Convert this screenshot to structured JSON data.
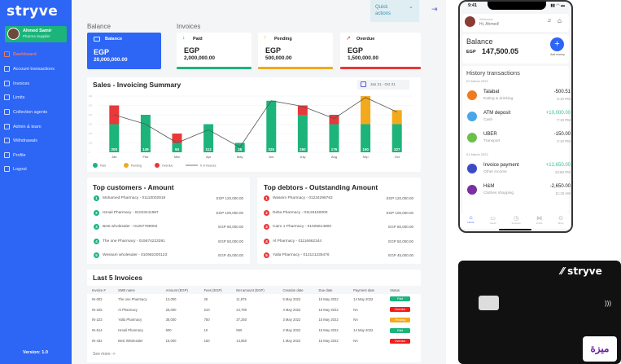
{
  "sidebar": {
    "brand": "stryve",
    "user": {
      "name": "Ahmed Samir",
      "role": "Pharma Supplier"
    },
    "items": [
      {
        "label": "Dashboard"
      },
      {
        "label": "Account transactions"
      },
      {
        "label": "Invoices"
      },
      {
        "label": "Limits"
      },
      {
        "label": "Collection agents"
      },
      {
        "label": "Admin & team"
      },
      {
        "label": "Withdrawals"
      },
      {
        "label": "Profile"
      },
      {
        "label": "Logout"
      }
    ],
    "version": "Version: 1.0"
  },
  "header": {
    "quick_actions": "Quick actions"
  },
  "balance": {
    "section": "Balance",
    "label": "Balance",
    "currency": "EGP",
    "amount": "20,000,000.00"
  },
  "invoices": {
    "section": "Invoices",
    "cards": [
      {
        "label": "Paid",
        "currency": "EGP",
        "amount": "2,000,000.00",
        "color": "#1db47c"
      },
      {
        "label": "Pending",
        "currency": "EGP",
        "amount": "500,000.00",
        "color": "#f2a91c"
      },
      {
        "label": "Overdue",
        "currency": "EGP",
        "amount": "1,500,000.00",
        "color": "#e8383a"
      }
    ]
  },
  "chart_data": {
    "type": "bar",
    "title": "Sales - Invoicing Summary",
    "date_range": "Jan 21 - Oct 21",
    "categories": [
      "Jan",
      "Feb",
      "Mar",
      "Apr",
      "May",
      "Jun",
      "July",
      "Aug",
      "Sep",
      "Oct"
    ],
    "ylim": [
      0,
      600
    ],
    "series": [
      {
        "name": "Paid",
        "color": "#1db47c",
        "values": [
          300,
          400,
          100,
          300,
          100,
          550,
          400,
          300,
          300,
          300
        ]
      },
      {
        "name": "Pending",
        "color": "#f2a91c",
        "values": [
          0,
          0,
          0,
          0,
          0,
          0,
          0,
          0,
          300,
          150
        ]
      },
      {
        "name": "Overdue",
        "color": "#e8383a",
        "values": [
          200,
          0,
          100,
          0,
          0,
          0,
          100,
          100,
          0,
          0
        ]
      },
      {
        "name": "# of invoices",
        "type": "line",
        "color": "#555555",
        "values": [
          400,
          300,
          100,
          240,
          55,
          550,
          490,
          360,
          585,
          430
        ]
      }
    ],
    "bar_labels": [
      "200",
      "149",
      "50",
      "112",
      "25",
      "325",
      "250",
      "175",
      "150",
      "327"
    ]
  },
  "top_customers": {
    "title": "Top customers  - Amount",
    "items": [
      {
        "rank": "1",
        "name": "Mohamed Pharmacy - 01110002918",
        "amount": "EGP 120,000.00"
      },
      {
        "rank": "2",
        "name": "Ismail Pharmacy - 01023411987",
        "amount": "EGP 100,000.00"
      },
      {
        "rank": "3",
        "name": "Best wholesaler - 01257789002",
        "amount": "EGP 80,000.00"
      },
      {
        "rank": "4",
        "name": "The one Pharmacy - 015674223391",
        "amount": "EGP 50,000.00"
      },
      {
        "rank": "5",
        "name": "Wessam wholesaler - 010982200123",
        "amount": "EGP 45,000.00"
      }
    ]
  },
  "top_debtors": {
    "title": "Top debtors - Outstanding Amount",
    "items": [
      {
        "rank": "1",
        "name": "Waseim Pharmacy - 01234298762",
        "amount": "EGP 120,000.00"
      },
      {
        "rank": "2",
        "name": "Delta Pharmacy - 01125150000",
        "amount": "EGP 100,000.00"
      },
      {
        "rank": "3",
        "name": "Cairo 1 Pharmacy  - 01025614800",
        "amount": "EGP 80,000.00"
      },
      {
        "rank": "4",
        "name": "Al Pharmacy  - 01116662344",
        "amount": "EGP 50,000.00"
      },
      {
        "rank": "5",
        "name": "Yalla Pharmacy  - 012121235476",
        "amount": "EGP 45,000.00"
      }
    ]
  },
  "last_invoices": {
    "title": "Last 5 Invoices",
    "see_more": "See more  ->",
    "columns": [
      "Invoice #",
      "SME name",
      "Amount (EGP)",
      "Fees (EGP)",
      "Net amount (EGP)",
      "Creation date",
      "Due date",
      "Payment date",
      "Status"
    ],
    "rows": [
      [
        "IN-002",
        "The one Pharmacy",
        "12,000",
        "25",
        "11,975",
        "5 May 2022",
        "15 May 2022",
        "14 May 2022",
        "Paid"
      ],
      [
        "IN-225",
        "Al Pharmacy",
        "25,000",
        "210",
        "24,790",
        "4 May 2022",
        "15 May 2022",
        "NA",
        "Overdue"
      ],
      [
        "IN-223",
        "Yalla Pharmacy",
        "38,000",
        "750",
        "37,250",
        "3 May 2022",
        "15 May 2022",
        "NA",
        "Pending"
      ],
      [
        "IN-514",
        "Ismail Pharmacy",
        "600",
        "10",
        "590",
        "2 May 2022",
        "15 May 2022",
        "14 May 2022",
        "Paid"
      ],
      [
        "IN-432",
        "Best Wholesaler",
        "15,000",
        "150",
        "14,850",
        "1 May 2022",
        "15 May 2022",
        "NA",
        "Overdue"
      ]
    ]
  },
  "phone": {
    "time": "9:41",
    "welcome": "Welcome",
    "greeting": "Hi, Ahmed!",
    "balance_label": "Balance",
    "currency": "EGP",
    "balance": "147,500.05",
    "add_money": "Add money",
    "history_title": "History transactions",
    "groups": [
      {
        "date": "02 March 2022",
        "items": [
          {
            "name": "Talabat",
            "category": "Eating & drinking",
            "amount": "-500.51",
            "time": "9:10 PM",
            "color": "#f07b1f"
          },
          {
            "name": "ATM deposit",
            "category": "Cash",
            "amount": "+10,000.00",
            "time": "7:10 PM",
            "color": "#4aa6e8"
          },
          {
            "name": "UBER",
            "category": "Transport",
            "amount": "-150.00",
            "time": "2:10 PM",
            "color": "#6cc04a"
          }
        ]
      },
      {
        "date": "01 March 2022",
        "items": [
          {
            "name": "Invoice payment",
            "category": "Other income",
            "amount": "+12,650.00",
            "time": "10:50 PM",
            "color": "#3b4bc8"
          },
          {
            "name": "H&M",
            "category": "Clothes shopping",
            "amount": "-2,650.00",
            "time": "11:10 AM",
            "color": "#7b2fa0"
          }
        ]
      }
    ],
    "tabs": [
      "Home",
      "Cards",
      "Invoices",
      "Limits",
      "More"
    ]
  },
  "bank_card": {
    "brand": "stryve",
    "network": "Meeza"
  }
}
